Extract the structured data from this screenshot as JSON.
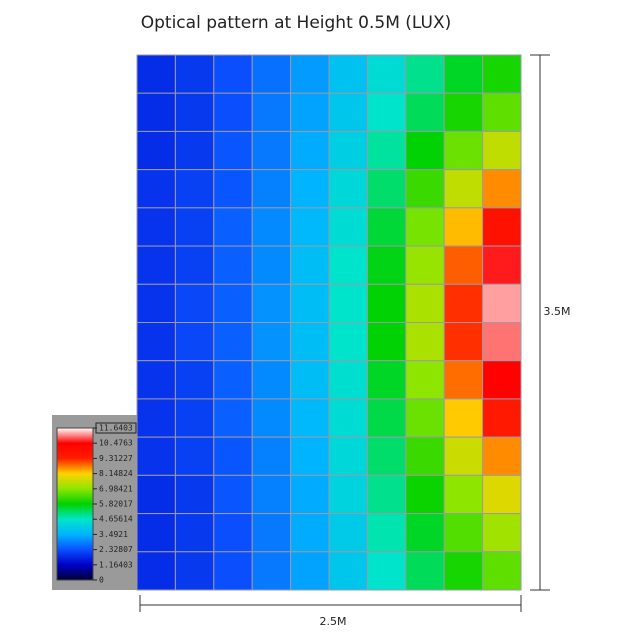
{
  "chart_data": {
    "type": "heatmap",
    "title": "Optical pattern at Height 0.5M   (LUX)",
    "height_label": "3.5M",
    "width_label": "2.5M",
    "values": [
      [
        1.8,
        2.0,
        2.3,
        2.7,
        3.2,
        3.8,
        4.4,
        5.0,
        5.6,
        6.0
      ],
      [
        1.8,
        2.0,
        2.3,
        2.8,
        3.3,
        3.9,
        4.6,
        5.3,
        6.0,
        6.6
      ],
      [
        1.8,
        2.0,
        2.4,
        2.8,
        3.4,
        4.1,
        4.9,
        5.8,
        6.7,
        7.5
      ],
      [
        1.9,
        2.1,
        2.4,
        2.9,
        3.5,
        4.3,
        5.2,
        6.3,
        7.5,
        8.6
      ],
      [
        1.9,
        2.1,
        2.5,
        3.0,
        3.6,
        4.4,
        5.5,
        6.8,
        8.3,
        9.8
      ],
      [
        1.9,
        2.1,
        2.5,
        3.0,
        3.7,
        4.6,
        5.7,
        7.1,
        8.9,
        10.6
      ],
      [
        1.9,
        2.2,
        2.5,
        3.1,
        3.7,
        4.6,
        5.8,
        7.3,
        9.2,
        11.2
      ],
      [
        1.9,
        2.2,
        2.5,
        3.1,
        3.7,
        4.6,
        5.8,
        7.3,
        9.2,
        11.0
      ],
      [
        1.9,
        2.1,
        2.5,
        3.0,
        3.7,
        4.5,
        5.6,
        7.0,
        8.8,
        10.4
      ],
      [
        1.9,
        2.1,
        2.5,
        3.0,
        3.6,
        4.4,
        5.4,
        6.7,
        8.2,
        9.5
      ],
      [
        1.9,
        2.1,
        2.4,
        2.9,
        3.5,
        4.3,
        5.2,
        6.3,
        7.6,
        8.6
      ],
      [
        1.8,
        2.0,
        2.4,
        2.9,
        3.4,
        4.2,
        5.0,
        5.9,
        7.0,
        7.8
      ],
      [
        1.8,
        2.0,
        2.3,
        2.8,
        3.4,
        4.0,
        4.8,
        5.6,
        6.5,
        7.2
      ],
      [
        1.8,
        2.0,
        2.3,
        2.8,
        3.3,
        3.9,
        4.6,
        5.3,
        6.0,
        6.6
      ]
    ],
    "zlim": [
      0,
      11.6403
    ],
    "zticks": [
      0,
      1.16403,
      2.32807,
      3.4921,
      4.65614,
      5.82017,
      6.98421,
      8.14824,
      9.31227,
      10.4763,
      11.6403
    ],
    "colors": [
      "#000033",
      "#0000c8",
      "#0a50ff",
      "#00b4ff",
      "#00e6c8",
      "#00d200",
      "#8ce600",
      "#ffd200",
      "#ff1e00",
      "#ff0000",
      "#ffffff"
    ]
  }
}
